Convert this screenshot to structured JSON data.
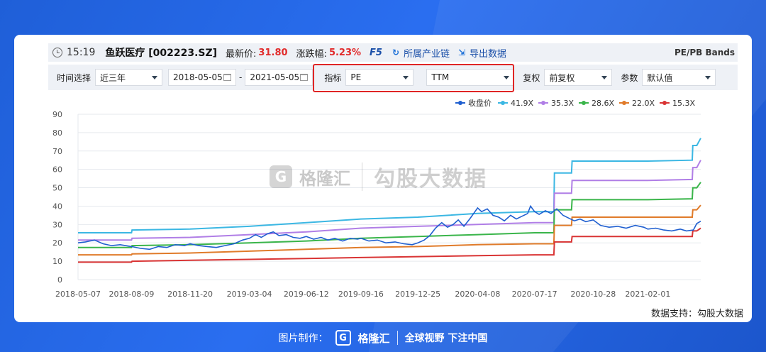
{
  "header": {
    "time": "15:19",
    "stock": "鱼跃医疗 [002223.SZ]",
    "price_label": "最新价:",
    "price": "31.80",
    "change_label": "涨跌幅:",
    "change": "5.23%",
    "f5": "F5",
    "industry_link": "所属产业链",
    "export_link": "导出数据",
    "bands_title": "PE/PB Bands"
  },
  "filters": {
    "time_label": "时间选择",
    "time_value": "近三年",
    "date_start": "2018-05-05",
    "date_sep": "-",
    "date_end": "2021-05-05",
    "indicator_label": "指标",
    "indicator_value": "PE",
    "ttm_value": "TTM",
    "adjust_label": "复权",
    "adjust_value": "前复权",
    "param_label": "参数",
    "param_value": "默认值"
  },
  "watermark": {
    "brand": "格隆汇",
    "text": "勾股大数据"
  },
  "support_text": "数据支持：勾股大数据",
  "footer": {
    "made_by": "图片制作：",
    "brand": "格隆汇",
    "slogan": "全球视野 下注中国"
  },
  "chart_data": {
    "type": "line",
    "ylim": [
      0,
      90
    ],
    "yticks": [
      0,
      10,
      20,
      30,
      40,
      50,
      60,
      70,
      80,
      90
    ],
    "xlim": [
      "2018-05-07",
      "2021-05-05"
    ],
    "xticks": [
      "2018-05-07",
      "2018-08-09",
      "2018-11-20",
      "2019-03-04",
      "2019-06-12",
      "2019-09-16",
      "2019-12-25",
      "2020-04-08",
      "2020-07-17",
      "2020-10-28",
      "2021-02-01"
    ],
    "legend_position": "top-right",
    "grid": true,
    "colors": {
      "收盘价": "#1f5fd0",
      "41.9X": "#3bb7e3",
      "35.3X": "#b07ee6",
      "28.6X": "#3ab54a",
      "22.0X": "#e07b2a",
      "15.3X": "#d93434"
    },
    "bands": [
      {
        "name": "41.9X",
        "points": [
          [
            "2018-05-07",
            25.5
          ],
          [
            "2018-08-09",
            25.5
          ],
          [
            "2018-08-10",
            27
          ],
          [
            "2018-11-20",
            27.5
          ],
          [
            "2019-03-04",
            29
          ],
          [
            "2019-06-12",
            31
          ],
          [
            "2019-09-16",
            33
          ],
          [
            "2019-12-25",
            34
          ],
          [
            "2020-04-08",
            36
          ],
          [
            "2020-07-17",
            37
          ],
          [
            "2020-08-20",
            37
          ],
          [
            "2020-08-21",
            58
          ],
          [
            "2020-09-20",
            58
          ],
          [
            "2020-09-21",
            64.5
          ],
          [
            "2021-02-01",
            64.5
          ],
          [
            "2021-04-20",
            65
          ],
          [
            "2021-04-21",
            73
          ],
          [
            "2021-04-28",
            73
          ],
          [
            "2021-05-05",
            77
          ]
        ]
      },
      {
        "name": "35.3X",
        "points": [
          [
            "2018-05-07",
            21.5
          ],
          [
            "2018-08-09",
            21.5
          ],
          [
            "2018-08-10",
            22.5
          ],
          [
            "2018-11-20",
            23
          ],
          [
            "2019-03-04",
            24.5
          ],
          [
            "2019-06-12",
            26
          ],
          [
            "2019-09-16",
            28
          ],
          [
            "2019-12-25",
            29
          ],
          [
            "2020-04-08",
            30
          ],
          [
            "2020-07-17",
            31
          ],
          [
            "2020-08-20",
            31
          ],
          [
            "2020-08-21",
            47
          ],
          [
            "2020-09-20",
            47
          ],
          [
            "2020-09-21",
            54
          ],
          [
            "2021-02-01",
            54
          ],
          [
            "2021-04-20",
            54.5
          ],
          [
            "2021-04-21",
            61
          ],
          [
            "2021-04-28",
            61
          ],
          [
            "2021-05-05",
            65
          ]
        ]
      },
      {
        "name": "28.6X",
        "points": [
          [
            "2018-05-07",
            17.5
          ],
          [
            "2018-08-09",
            17.5
          ],
          [
            "2018-08-10",
            18.5
          ],
          [
            "2018-11-20",
            19
          ],
          [
            "2019-03-04",
            20
          ],
          [
            "2019-06-12",
            21
          ],
          [
            "2019-09-16",
            22.5
          ],
          [
            "2019-12-25",
            23.5
          ],
          [
            "2020-04-08",
            24.5
          ],
          [
            "2020-07-17",
            25.5
          ],
          [
            "2020-08-20",
            25.5
          ],
          [
            "2020-08-21",
            38
          ],
          [
            "2020-09-20",
            38
          ],
          [
            "2020-09-21",
            43.5
          ],
          [
            "2021-02-01",
            43.5
          ],
          [
            "2021-04-20",
            44
          ],
          [
            "2021-04-21",
            50
          ],
          [
            "2021-04-28",
            50
          ],
          [
            "2021-05-05",
            53
          ]
        ]
      },
      {
        "name": "22.0X",
        "points": [
          [
            "2018-05-07",
            13.5
          ],
          [
            "2018-08-09",
            13.5
          ],
          [
            "2018-08-10",
            14
          ],
          [
            "2018-11-20",
            14.5
          ],
          [
            "2019-03-04",
            15.5
          ],
          [
            "2019-06-12",
            16.5
          ],
          [
            "2019-09-16",
            17.5
          ],
          [
            "2019-12-25",
            18
          ],
          [
            "2020-04-08",
            19
          ],
          [
            "2020-07-17",
            19.5
          ],
          [
            "2020-08-20",
            19.5
          ],
          [
            "2020-08-21",
            29.5
          ],
          [
            "2020-09-20",
            29.5
          ],
          [
            "2020-09-21",
            34
          ],
          [
            "2021-02-01",
            34
          ],
          [
            "2021-04-20",
            34
          ],
          [
            "2021-04-21",
            38
          ],
          [
            "2021-04-28",
            38
          ],
          [
            "2021-05-05",
            40.5
          ]
        ]
      },
      {
        "name": "15.3X",
        "points": [
          [
            "2018-05-07",
            9.5
          ],
          [
            "2018-08-09",
            9.5
          ],
          [
            "2018-08-10",
            10
          ],
          [
            "2018-11-20",
            10.5
          ],
          [
            "2019-03-04",
            11
          ],
          [
            "2019-06-12",
            11.5
          ],
          [
            "2019-09-16",
            12
          ],
          [
            "2019-12-25",
            12.5
          ],
          [
            "2020-04-08",
            13
          ],
          [
            "2020-07-17",
            13.5
          ],
          [
            "2020-08-20",
            13.5
          ],
          [
            "2020-08-21",
            20.5
          ],
          [
            "2020-09-20",
            20.5
          ],
          [
            "2020-09-21",
            23.5
          ],
          [
            "2021-02-01",
            23.5
          ],
          [
            "2021-04-20",
            23.5
          ],
          [
            "2021-04-21",
            26.5
          ],
          [
            "2021-04-28",
            26.5
          ],
          [
            "2021-05-05",
            28
          ]
        ]
      }
    ],
    "close": {
      "name": "收盘价",
      "points": [
        [
          "2018-05-07",
          20
        ],
        [
          "2018-05-20",
          20.5
        ],
        [
          "2018-06-05",
          21.5
        ],
        [
          "2018-06-20",
          19.5
        ],
        [
          "2018-07-05",
          18.5
        ],
        [
          "2018-07-20",
          19
        ],
        [
          "2018-08-09",
          18
        ],
        [
          "2018-08-25",
          17
        ],
        [
          "2018-09-10",
          16.5
        ],
        [
          "2018-09-25",
          18
        ],
        [
          "2018-10-10",
          17.5
        ],
        [
          "2018-10-25",
          19
        ],
        [
          "2018-11-10",
          18.5
        ],
        [
          "2018-11-20",
          19.5
        ],
        [
          "2018-12-05",
          18.5
        ],
        [
          "2018-12-20",
          18
        ],
        [
          "2019-01-05",
          17.5
        ],
        [
          "2019-01-20",
          18.5
        ],
        [
          "2019-02-05",
          19.5
        ],
        [
          "2019-02-20",
          21.5
        ],
        [
          "2019-03-04",
          22.5
        ],
        [
          "2019-03-15",
          24.5
        ],
        [
          "2019-03-25",
          23
        ],
        [
          "2019-04-05",
          25
        ],
        [
          "2019-04-15",
          26
        ],
        [
          "2019-04-25",
          24
        ],
        [
          "2019-05-08",
          24.5
        ],
        [
          "2019-05-20",
          23
        ],
        [
          "2019-06-01",
          22.5
        ],
        [
          "2019-06-12",
          23.5
        ],
        [
          "2019-06-25",
          22
        ],
        [
          "2019-07-08",
          23
        ],
        [
          "2019-07-20",
          21.5
        ],
        [
          "2019-08-01",
          22.5
        ],
        [
          "2019-08-15",
          21
        ],
        [
          "2019-08-28",
          22.5
        ],
        [
          "2019-09-10",
          22
        ],
        [
          "2019-09-16",
          22.5
        ],
        [
          "2019-09-30",
          21
        ],
        [
          "2019-10-15",
          21.5
        ],
        [
          "2019-10-30",
          20
        ],
        [
          "2019-11-15",
          20.5
        ],
        [
          "2019-11-30",
          19.5
        ],
        [
          "2019-12-15",
          19
        ],
        [
          "2019-12-25",
          20
        ],
        [
          "2020-01-05",
          21.5
        ],
        [
          "2020-01-15",
          24
        ],
        [
          "2020-01-25",
          28
        ],
        [
          "2020-02-05",
          31
        ],
        [
          "2020-02-15",
          28.5
        ],
        [
          "2020-02-25",
          30
        ],
        [
          "2020-03-05",
          32.5
        ],
        [
          "2020-03-15",
          29
        ],
        [
          "2020-03-25",
          33
        ],
        [
          "2020-04-01",
          36
        ],
        [
          "2020-04-08",
          39
        ],
        [
          "2020-04-15",
          37
        ],
        [
          "2020-04-25",
          38.5
        ],
        [
          "2020-05-05",
          35
        ],
        [
          "2020-05-15",
          34
        ],
        [
          "2020-05-25",
          32
        ],
        [
          "2020-06-05",
          35
        ],
        [
          "2020-06-15",
          33
        ],
        [
          "2020-06-25",
          34.5
        ],
        [
          "2020-07-05",
          36
        ],
        [
          "2020-07-10",
          40
        ],
        [
          "2020-07-17",
          37
        ],
        [
          "2020-07-25",
          35.5
        ],
        [
          "2020-08-05",
          37.5
        ],
        [
          "2020-08-15",
          36
        ],
        [
          "2020-08-25",
          38.5
        ],
        [
          "2020-09-05",
          35
        ],
        [
          "2020-09-15",
          33.5
        ],
        [
          "2020-09-25",
          32
        ],
        [
          "2020-10-05",
          33
        ],
        [
          "2020-10-15",
          31.5
        ],
        [
          "2020-10-28",
          32.5
        ],
        [
          "2020-11-10",
          29.5
        ],
        [
          "2020-11-25",
          28.5
        ],
        [
          "2020-12-10",
          29
        ],
        [
          "2020-12-25",
          28
        ],
        [
          "2021-01-10",
          29.5
        ],
        [
          "2021-01-25",
          28.5
        ],
        [
          "2021-02-01",
          27.5
        ],
        [
          "2021-02-15",
          28
        ],
        [
          "2021-03-01",
          27
        ],
        [
          "2021-03-15",
          26.5
        ],
        [
          "2021-03-30",
          27.5
        ],
        [
          "2021-04-10",
          26.5
        ],
        [
          "2021-04-22",
          27
        ],
        [
          "2021-04-28",
          30.5
        ],
        [
          "2021-05-05",
          31.8
        ]
      ]
    }
  }
}
